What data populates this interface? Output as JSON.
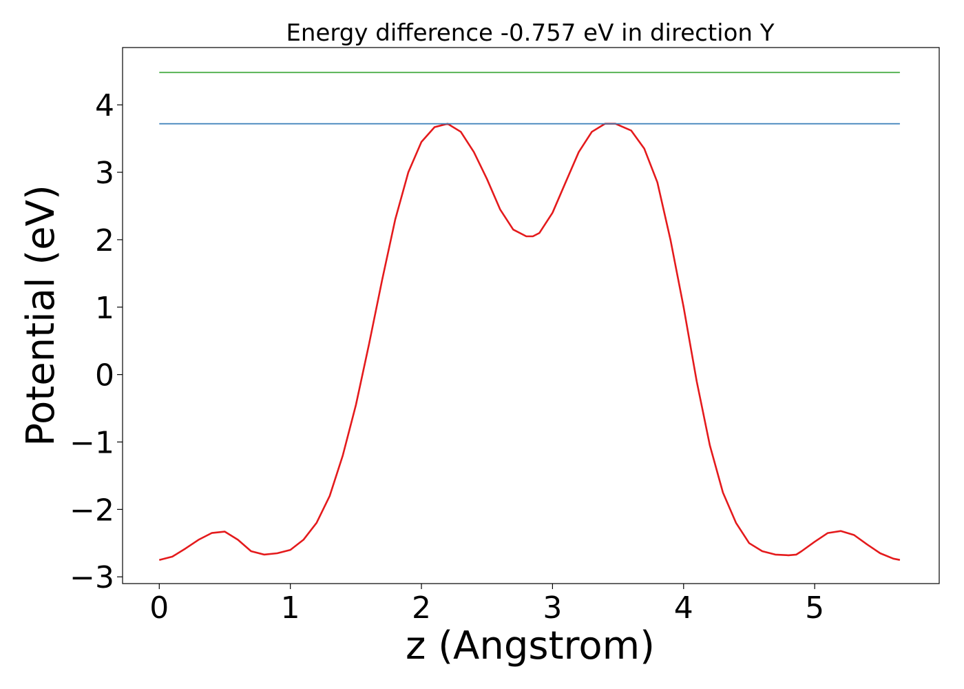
{
  "chart_data": {
    "type": "line",
    "title": "Energy difference -0.757 eV in direction Y",
    "xlabel": "z (Angstrom)",
    "ylabel": "Potential (eV)",
    "xlim": [
      -0.28,
      5.95
    ],
    "ylim": [
      -3.1,
      4.85
    ],
    "xticks": [
      0,
      1,
      2,
      3,
      4,
      5
    ],
    "xtick_labels": [
      "0",
      "1",
      "2",
      "3",
      "4",
      "5"
    ],
    "yticks": [
      -3,
      -2,
      -1,
      0,
      1,
      2,
      3,
      4
    ],
    "ytick_labels": [
      "−3",
      "−2",
      "−1",
      "0",
      "1",
      "2",
      "3",
      "4"
    ],
    "grid": false,
    "legend": "none",
    "series": [
      {
        "color": "#e41a1c",
        "x": [
          0,
          0.1,
          0.2,
          0.3,
          0.4,
          0.5,
          0.6,
          0.7,
          0.8,
          0.9,
          1.0,
          1.1,
          1.2,
          1.3,
          1.4,
          1.5,
          1.6,
          1.7,
          1.8,
          1.9,
          2.0,
          2.1,
          2.2,
          2.3,
          2.4,
          2.5,
          2.6,
          2.7,
          2.8,
          2.85,
          2.9,
          3.0,
          3.1,
          3.2,
          3.3,
          3.4,
          3.48,
          3.6,
          3.7,
          3.8,
          3.9,
          4.0,
          4.1,
          4.2,
          4.3,
          4.4,
          4.5,
          4.6,
          4.7,
          4.8,
          4.86,
          4.9,
          5.0,
          5.1,
          5.2,
          5.3,
          5.4,
          5.5,
          5.6,
          5.65
        ],
        "y": [
          -2.75,
          -2.7,
          -2.58,
          -2.45,
          -2.35,
          -2.33,
          -2.45,
          -2.62,
          -2.67,
          -2.65,
          -2.6,
          -2.45,
          -2.2,
          -1.8,
          -1.2,
          -0.45,
          0.45,
          1.4,
          2.3,
          3.0,
          3.45,
          3.67,
          3.72,
          3.6,
          3.3,
          2.9,
          2.45,
          2.15,
          2.05,
          2.05,
          2.1,
          2.4,
          2.85,
          3.3,
          3.6,
          3.72,
          3.72,
          3.62,
          3.35,
          2.85,
          2.0,
          1.0,
          -0.1,
          -1.05,
          -1.75,
          -2.2,
          -2.5,
          -2.62,
          -2.67,
          -2.68,
          -2.67,
          -2.62,
          -2.48,
          -2.35,
          -2.32,
          -2.38,
          -2.52,
          -2.65,
          -2.73,
          -2.75
        ]
      },
      {
        "color": "#377eb8",
        "x": [
          0,
          5.65
        ],
        "y": [
          3.72,
          3.72
        ]
      },
      {
        "color": "#4daf4a",
        "x": [
          0,
          5.65
        ],
        "y": [
          4.48,
          4.48
        ]
      }
    ]
  }
}
